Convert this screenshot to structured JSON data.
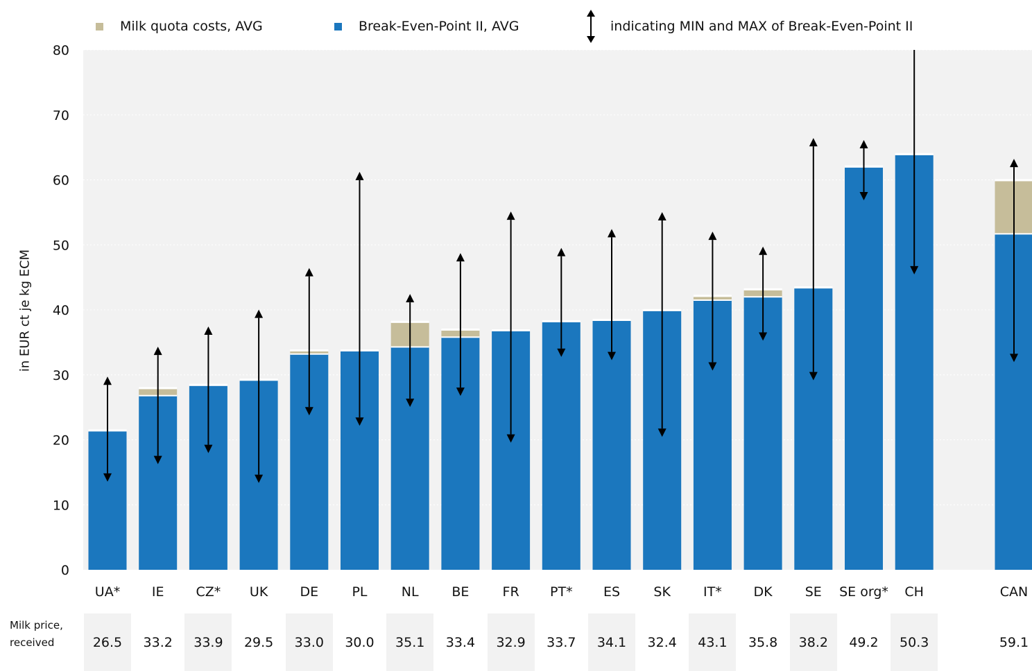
{
  "chart_data": {
    "type": "bar",
    "stacked": true,
    "ylabel": "in EUR ct je kg ECM",
    "ylim": [
      0,
      80
    ],
    "yticks": [
      0,
      10,
      20,
      30,
      40,
      50,
      60,
      70,
      80
    ],
    "grid": true,
    "legend_position": "top",
    "categories": [
      "UA*",
      "IE",
      "CZ*",
      "UK",
      "DE",
      "PL",
      "NL",
      "BE",
      "FR",
      "PT*",
      "ES",
      "SK",
      "IT*",
      "DK",
      "SE",
      "SE org*",
      "CH",
      "CAN"
    ],
    "gap_before": [
      "CAN"
    ],
    "series": [
      {
        "name": "Break-Even-Point II, AVG",
        "color": "#1b77be",
        "values": [
          21.3,
          26.8,
          28.3,
          29.1,
          33.2,
          33.6,
          34.3,
          35.8,
          36.7,
          38.1,
          38.3,
          39.8,
          41.5,
          42.0,
          43.3,
          61.9,
          63.8,
          51.7
        ]
      },
      {
        "name": "Milk quota costs, AVG",
        "color": "#c6bd9a",
        "values": [
          0,
          1.0,
          0,
          0,
          0.4,
          0,
          3.7,
          1.0,
          0,
          0,
          0,
          0,
          0.5,
          1.0,
          0,
          0,
          0,
          8.1
        ]
      }
    ],
    "range": {
      "name": "indicating MIN and MAX of Break-Even-Point II",
      "min": [
        14.2,
        16.9,
        18.6,
        14.0,
        24.4,
        22.8,
        25.7,
        27.4,
        20.2,
        33.4,
        32.9,
        21.1,
        31.3,
        35.9,
        29.8,
        57.5,
        46.1,
        32.6
      ],
      "max": [
        29.1,
        33.7,
        36.8,
        39.4,
        45.8,
        60.6,
        41.8,
        48.1,
        54.5,
        48.9,
        51.8,
        54.4,
        51.4,
        49.1,
        65.8,
        65.5,
        80,
        62.6
      ]
    }
  },
  "legend": {
    "quota_label": "Milk quota costs, AVG",
    "bep_label": "Break-Even-Point II, AVG",
    "range_label": "indicating MIN and MAX of Break-Even-Point II"
  },
  "price_table": {
    "label": "Milk price, received",
    "values": [
      "26.5",
      "33.2",
      "33.9",
      "29.5",
      "33.0",
      "30.0",
      "35.1",
      "33.4",
      "32.9",
      "33.7",
      "34.1",
      "32.4",
      "43.1",
      "35.8",
      "38.2",
      "49.2",
      "50.3",
      "59.1"
    ]
  }
}
